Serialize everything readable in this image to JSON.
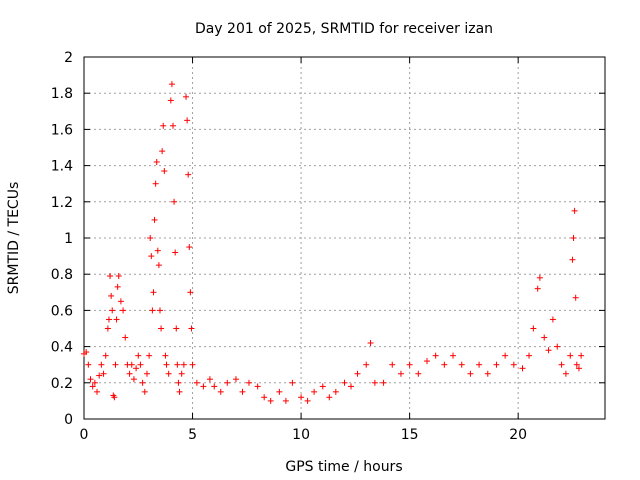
{
  "chart_data": {
    "type": "scatter",
    "title": "Day 201 of 2025, SRMTID for receiver izan",
    "xlabel": "GPS time / hours",
    "ylabel": "SRMTID / TECUs",
    "xlim": [
      0,
      24
    ],
    "ylim": [
      0,
      2
    ],
    "xticks": [
      "0",
      "5",
      "10",
      "15",
      "20"
    ],
    "yticks": [
      "0",
      "0.2",
      "0.4",
      "0.6",
      "0.8",
      "1",
      "1.2",
      "1.4",
      "1.6",
      "1.8",
      "2"
    ],
    "grid": true,
    "marker": "+",
    "series": [
      {
        "name": "SRMTID",
        "color": "#ff0000",
        "points": [
          [
            0.0,
            0.36
          ],
          [
            0.1,
            0.37
          ],
          [
            0.2,
            0.3
          ],
          [
            0.3,
            0.22
          ],
          [
            0.4,
            0.18
          ],
          [
            0.5,
            0.2
          ],
          [
            0.6,
            0.15
          ],
          [
            0.7,
            0.24
          ],
          [
            0.8,
            0.3
          ],
          [
            0.9,
            0.25
          ],
          [
            1.0,
            0.35
          ],
          [
            1.1,
            0.5
          ],
          [
            1.15,
            0.55
          ],
          [
            1.2,
            0.79
          ],
          [
            1.25,
            0.68
          ],
          [
            1.3,
            0.6
          ],
          [
            1.35,
            0.13
          ],
          [
            1.4,
            0.12
          ],
          [
            1.45,
            0.3
          ],
          [
            1.5,
            0.55
          ],
          [
            1.55,
            0.73
          ],
          [
            1.6,
            0.79
          ],
          [
            1.7,
            0.65
          ],
          [
            1.8,
            0.6
          ],
          [
            1.9,
            0.45
          ],
          [
            2.0,
            0.3
          ],
          [
            2.1,
            0.25
          ],
          [
            2.2,
            0.3
          ],
          [
            2.3,
            0.22
          ],
          [
            2.4,
            0.28
          ],
          [
            2.5,
            0.35
          ],
          [
            2.6,
            0.3
          ],
          [
            2.7,
            0.2
          ],
          [
            2.8,
            0.15
          ],
          [
            2.9,
            0.25
          ],
          [
            3.0,
            0.35
          ],
          [
            3.05,
            1.0
          ],
          [
            3.1,
            0.9
          ],
          [
            3.15,
            0.6
          ],
          [
            3.2,
            0.7
          ],
          [
            3.25,
            1.1
          ],
          [
            3.3,
            1.3
          ],
          [
            3.35,
            1.42
          ],
          [
            3.4,
            0.93
          ],
          [
            3.45,
            0.85
          ],
          [
            3.5,
            0.6
          ],
          [
            3.55,
            0.5
          ],
          [
            3.6,
            1.48
          ],
          [
            3.65,
            1.62
          ],
          [
            3.7,
            1.37
          ],
          [
            3.75,
            0.35
          ],
          [
            3.8,
            0.3
          ],
          [
            3.9,
            0.25
          ],
          [
            4.0,
            1.76
          ],
          [
            4.05,
            1.85
          ],
          [
            4.1,
            1.62
          ],
          [
            4.15,
            1.2
          ],
          [
            4.2,
            0.92
          ],
          [
            4.25,
            0.5
          ],
          [
            4.3,
            0.3
          ],
          [
            4.35,
            0.2
          ],
          [
            4.4,
            0.15
          ],
          [
            4.5,
            0.25
          ],
          [
            4.6,
            0.3
          ],
          [
            4.7,
            1.78
          ],
          [
            4.75,
            1.65
          ],
          [
            4.8,
            1.35
          ],
          [
            4.85,
            0.95
          ],
          [
            4.9,
            0.7
          ],
          [
            4.95,
            0.5
          ],
          [
            5.0,
            0.3
          ],
          [
            5.2,
            0.2
          ],
          [
            5.5,
            0.18
          ],
          [
            5.8,
            0.22
          ],
          [
            6.0,
            0.18
          ],
          [
            6.3,
            0.15
          ],
          [
            6.6,
            0.2
          ],
          [
            7.0,
            0.22
          ],
          [
            7.3,
            0.15
          ],
          [
            7.6,
            0.2
          ],
          [
            8.0,
            0.18
          ],
          [
            8.3,
            0.12
          ],
          [
            8.6,
            0.1
          ],
          [
            9.0,
            0.15
          ],
          [
            9.3,
            0.1
          ],
          [
            9.6,
            0.2
          ],
          [
            10.0,
            0.12
          ],
          [
            10.3,
            0.1
          ],
          [
            10.6,
            0.15
          ],
          [
            11.0,
            0.18
          ],
          [
            11.3,
            0.12
          ],
          [
            11.6,
            0.15
          ],
          [
            12.0,
            0.2
          ],
          [
            12.3,
            0.18
          ],
          [
            12.6,
            0.25
          ],
          [
            13.0,
            0.3
          ],
          [
            13.2,
            0.42
          ],
          [
            13.4,
            0.2
          ],
          [
            13.8,
            0.2
          ],
          [
            14.2,
            0.3
          ],
          [
            14.6,
            0.25
          ],
          [
            15.0,
            0.3
          ],
          [
            15.4,
            0.25
          ],
          [
            15.8,
            0.32
          ],
          [
            16.2,
            0.35
          ],
          [
            16.6,
            0.3
          ],
          [
            17.0,
            0.35
          ],
          [
            17.4,
            0.3
          ],
          [
            17.8,
            0.25
          ],
          [
            18.2,
            0.3
          ],
          [
            18.6,
            0.25
          ],
          [
            19.0,
            0.3
          ],
          [
            19.4,
            0.35
          ],
          [
            19.8,
            0.3
          ],
          [
            20.2,
            0.28
          ],
          [
            20.5,
            0.35
          ],
          [
            20.7,
            0.5
          ],
          [
            20.9,
            0.72
          ],
          [
            21.0,
            0.78
          ],
          [
            21.2,
            0.45
          ],
          [
            21.4,
            0.38
          ],
          [
            21.6,
            0.55
          ],
          [
            21.8,
            0.4
          ],
          [
            22.0,
            0.3
          ],
          [
            22.2,
            0.25
          ],
          [
            22.4,
            0.35
          ],
          [
            22.5,
            0.88
          ],
          [
            22.55,
            1.0
          ],
          [
            22.6,
            1.15
          ],
          [
            22.65,
            0.67
          ],
          [
            22.7,
            0.3
          ],
          [
            22.8,
            0.28
          ],
          [
            22.9,
            0.35
          ]
        ]
      }
    ]
  }
}
